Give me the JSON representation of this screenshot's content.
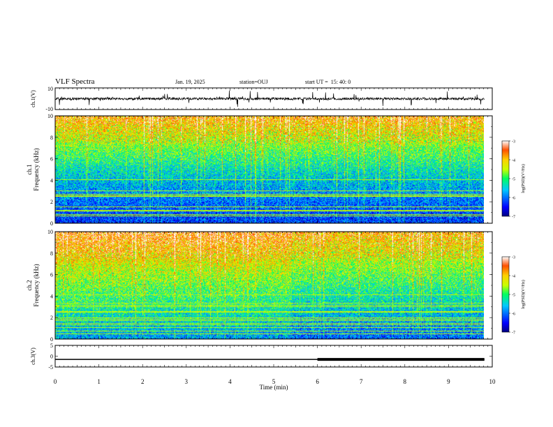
{
  "header": {
    "title": "VLF Spectra",
    "date": "Jan. 19, 2025",
    "station": "station=OUJ",
    "start_ut": "start UT =  15: 40: 0"
  },
  "chart_data": [
    {
      "type": "line",
      "panel": "ch1-waveform",
      "ylabel": "ch.1(V)",
      "ylim": [
        -10,
        10
      ],
      "y_ticks": [
        "10",
        "-10"
      ],
      "xlim": [
        0,
        10
      ],
      "baseline": 0,
      "color": "#000000"
    },
    {
      "type": "heatmap",
      "panel": "ch1-spectrogram",
      "ylabel_top": "ch.1",
      "ylabel": "Frequency (kHz)",
      "ylim": [
        0,
        10
      ],
      "y_ticks": [
        "0",
        "2",
        "4",
        "6",
        "8",
        "10"
      ],
      "xlim": [
        0,
        9.82
      ],
      "colorbar": {
        "label": "log(PSD)(V²/Hz)",
        "range": [
          -7,
          -3
        ],
        "ticks": [
          "-3",
          "-4",
          "-5",
          "-6",
          "-7"
        ]
      }
    },
    {
      "type": "heatmap",
      "panel": "ch2-spectrogram",
      "ylabel_top": "ch.2",
      "ylabel": "Frequency (kHz)",
      "ylim": [
        0,
        10
      ],
      "y_ticks": [
        "0",
        "2",
        "4",
        "6",
        "8",
        "10"
      ],
      "xlim": [
        0,
        9.82
      ],
      "colorbar": {
        "label": "log(PSD)(V²/Hz)",
        "range": [
          -7,
          -3
        ],
        "ticks": [
          "-3",
          "-4",
          "-5",
          "-6",
          "-7"
        ]
      }
    },
    {
      "type": "line",
      "panel": "ch3-level",
      "ylabel": "ch.3(V)",
      "ylim": [
        -5,
        5
      ],
      "y_ticks": [
        "5",
        "0",
        "-5"
      ],
      "xlim": [
        0,
        10
      ],
      "level": -1.5,
      "thick_from": 6.0,
      "color": "#000000"
    }
  ],
  "x_axis": {
    "label": "Time (min)",
    "ticks": [
      "0",
      "1",
      "2",
      "3",
      "4",
      "5",
      "6",
      "7",
      "8",
      "9",
      "10"
    ],
    "range": [
      0,
      10
    ]
  }
}
